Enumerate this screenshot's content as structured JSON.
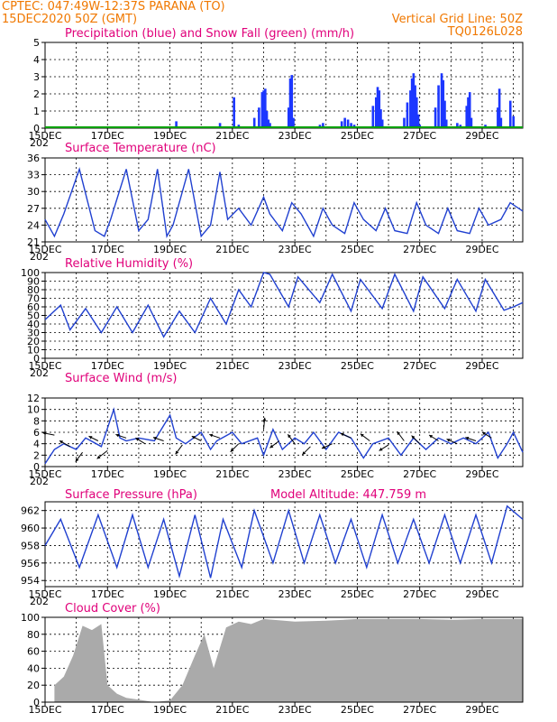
{
  "header": {
    "left_line1": "CPTEC:   047:49W-12:37S   PARANA (TO)",
    "left_line2": "15DEC2020 50Z (GMT)",
    "right_line1": "Vertical Grid Line: 50Z",
    "right_line2": "TQ0126L028"
  },
  "x_ticks": [
    "15DEC",
    "17DEC",
    "19DEC",
    "21DEC",
    "23DEC",
    "25DEC",
    "27DEC",
    "29DEC"
  ],
  "x_tick_cut": "202",
  "colors": {
    "precip": "#1c37ff",
    "snow": "#00a000",
    "line": "#2040d0",
    "cloud": "#aaaaaa",
    "header": "#f07800",
    "title": "#e0007a"
  },
  "chart_data": [
    {
      "type": "bar",
      "title": "Precipitation (blue) and Snow Fall (green) (mm/h)",
      "yticks": [
        "0",
        "1",
        "2",
        "3",
        "4",
        "5"
      ],
      "ylim": [
        0,
        5
      ],
      "xlim_days": [
        15,
        30.3
      ],
      "series": [
        {
          "name": "Precipitation",
          "x": [
            19.2,
            20.6,
            21.05,
            21.2,
            21.7,
            21.85,
            21.95,
            22.0,
            22.05,
            22.1,
            22.15,
            22.2,
            22.8,
            22.85,
            22.9,
            22.95,
            23.8,
            23.9,
            24.5,
            24.6,
            24.7,
            24.8,
            24.9,
            25.0,
            25.5,
            25.6,
            25.65,
            25.7,
            25.75,
            25.8,
            26.5,
            26.6,
            26.7,
            26.75,
            26.8,
            26.85,
            26.9,
            26.95,
            27.0,
            27.5,
            27.6,
            27.7,
            27.75,
            27.8,
            27.85,
            28.2,
            28.3,
            28.5,
            28.55,
            28.6,
            28.65,
            29.1,
            29.5,
            29.55,
            29.6,
            29.9,
            30.0
          ],
          "values": [
            0.4,
            0.3,
            1.8,
            0.2,
            0.6,
            1.2,
            2.1,
            2.2,
            2.3,
            1.0,
            0.5,
            0.3,
            1.2,
            2.9,
            3.1,
            0.6,
            0.2,
            0.3,
            0.4,
            0.6,
            0.5,
            0.3,
            0.2,
            0.1,
            1.3,
            1.8,
            2.4,
            2.2,
            1.1,
            0.5,
            0.6,
            1.5,
            2.2,
            2.9,
            3.2,
            2.5,
            1.8,
            0.8,
            0.2,
            1.2,
            2.5,
            3.2,
            2.8,
            1.6,
            0.5,
            0.3,
            0.2,
            1.3,
            1.8,
            2.1,
            0.6,
            0.2,
            1.2,
            2.3,
            0.6,
            1.6,
            0.7
          ]
        },
        {
          "name": "Snow Fall",
          "x": [
            15,
            30.3
          ],
          "values": [
            0,
            0
          ]
        }
      ]
    },
    {
      "type": "line",
      "title": "Surface Temperature (nC)",
      "yticks": [
        "21",
        "24",
        "27",
        "30",
        "33",
        "36"
      ],
      "ylim": [
        21,
        36
      ],
      "x": [
        15.0,
        15.3,
        15.6,
        16.1,
        16.6,
        16.9,
        17.1,
        17.6,
        18.0,
        18.3,
        18.6,
        18.9,
        19.1,
        19.6,
        20.0,
        20.3,
        20.6,
        20.85,
        21.2,
        21.6,
        22.0,
        22.2,
        22.6,
        22.9,
        23.2,
        23.6,
        23.9,
        24.2,
        24.6,
        24.9,
        25.2,
        25.6,
        25.9,
        26.2,
        26.6,
        26.9,
        27.2,
        27.6,
        27.9,
        28.2,
        28.6,
        28.9,
        29.2,
        29.6,
        29.9,
        30.3
      ],
      "y": [
        25,
        22,
        26,
        34,
        23,
        22,
        25,
        34,
        23,
        25,
        34,
        22,
        24,
        34,
        22,
        24,
        33.5,
        25,
        27,
        24,
        29,
        26,
        23,
        28,
        26,
        22,
        27,
        24,
        22.5,
        28,
        25,
        23,
        27,
        23,
        22.5,
        28,
        24,
        22.5,
        27,
        23,
        22.5,
        27,
        24,
        25,
        28,
        26.5
      ]
    },
    {
      "type": "line",
      "title": "Relative Humidity (%)",
      "yticks": [
        "0",
        "10",
        "20",
        "30",
        "40",
        "50",
        "60",
        "70",
        "80",
        "90",
        "100"
      ],
      "ylim": [
        0,
        100
      ],
      "x": [
        15.0,
        15.5,
        15.8,
        16.3,
        16.8,
        17.3,
        17.8,
        18.3,
        18.8,
        19.3,
        19.8,
        20.3,
        20.8,
        21.2,
        21.6,
        22.0,
        22.2,
        22.8,
        23.1,
        23.8,
        24.2,
        24.8,
        25.1,
        25.8,
        26.2,
        26.8,
        27.1,
        27.8,
        28.2,
        28.8,
        29.1,
        29.7,
        30.0,
        30.3
      ],
      "y": [
        45,
        62,
        33,
        58,
        30,
        60,
        30,
        62,
        25,
        55,
        30,
        70,
        40,
        80,
        60,
        100,
        98,
        60,
        95,
        65,
        98,
        55,
        92,
        58,
        98,
        55,
        95,
        58,
        92,
        55,
        92,
        56,
        60,
        65
      ]
    },
    {
      "type": "line",
      "title": "Surface Wind (m/s)",
      "yticks": [
        "0",
        "2",
        "4",
        "6",
        "8",
        "10",
        "12"
      ],
      "ylim": [
        0,
        12
      ],
      "x": [
        15.0,
        15.3,
        15.6,
        16.0,
        16.3,
        16.8,
        17.2,
        17.4,
        17.6,
        18.0,
        18.5,
        19.0,
        19.2,
        19.5,
        20.0,
        20.3,
        20.5,
        21.0,
        21.3,
        21.8,
        22.0,
        22.3,
        22.6,
        23.0,
        23.3,
        23.6,
        24.0,
        24.4,
        24.8,
        25.2,
        25.5,
        26.0,
        26.4,
        26.8,
        27.2,
        27.6,
        28.0,
        28.4,
        28.8,
        29.2,
        29.5,
        29.8,
        30.0,
        30.3
      ],
      "y": [
        0.5,
        3.0,
        4.0,
        3.0,
        5.0,
        3.5,
        10.0,
        5.0,
        4.5,
        5.0,
        4.5,
        9.0,
        5.0,
        4.0,
        6.0,
        3.0,
        4.5,
        6.0,
        4.0,
        5.0,
        2.0,
        6.5,
        3.0,
        5.0,
        4.0,
        6.0,
        3.0,
        6.0,
        5.0,
        1.5,
        4.0,
        5.0,
        2.0,
        5.0,
        3.0,
        5.0,
        4.0,
        5.0,
        4.0,
        6.0,
        1.5,
        4.0,
        6.0,
        2.5
      ],
      "arrows": [
        {
          "x": 15.3,
          "y": 5.5,
          "dx": -1,
          "dy": 0.2
        },
        {
          "x": 15.8,
          "y": 3.5,
          "dx": -0.9,
          "dy": 0.5
        },
        {
          "x": 16.2,
          "y": 2.5,
          "dx": -0.6,
          "dy": -0.8
        },
        {
          "x": 16.7,
          "y": 4.5,
          "dx": -0.8,
          "dy": 0.4
        },
        {
          "x": 17.0,
          "y": 2.8,
          "dx": -0.9,
          "dy": -0.7
        },
        {
          "x": 17.6,
          "y": 5.0,
          "dx": -0.9,
          "dy": 0.3
        },
        {
          "x": 18.2,
          "y": 4.0,
          "dx": -0.8,
          "dy": 0.5
        },
        {
          "x": 18.8,
          "y": 4.5,
          "dx": -0.9,
          "dy": 0.3
        },
        {
          "x": 19.4,
          "y": 3.8,
          "dx": -0.6,
          "dy": -0.8
        },
        {
          "x": 20.0,
          "y": 4.5,
          "dx": -0.8,
          "dy": 0.4
        },
        {
          "x": 20.6,
          "y": 5.0,
          "dx": -0.9,
          "dy": 0.3
        },
        {
          "x": 21.2,
          "y": 4.0,
          "dx": -0.7,
          "dy": -0.7
        },
        {
          "x": 22.0,
          "y": 6.5,
          "dx": 0.1,
          "dy": 1.0
        },
        {
          "x": 22.5,
          "y": 4.5,
          "dx": -0.8,
          "dy": -0.6
        },
        {
          "x": 23.0,
          "y": 4.0,
          "dx": -0.6,
          "dy": 0.8
        },
        {
          "x": 23.5,
          "y": 3.5,
          "dx": -0.7,
          "dy": -0.7
        },
        {
          "x": 24.2,
          "y": 4.0,
          "dx": -0.9,
          "dy": -0.4
        },
        {
          "x": 24.8,
          "y": 5.0,
          "dx": -0.9,
          "dy": 0.4
        },
        {
          "x": 25.4,
          "y": 4.5,
          "dx": -0.8,
          "dy": 0.6
        },
        {
          "x": 26.0,
          "y": 3.8,
          "dx": -0.8,
          "dy": -0.5
        },
        {
          "x": 26.5,
          "y": 4.5,
          "dx": -0.6,
          "dy": 0.8
        },
        {
          "x": 27.0,
          "y": 4.0,
          "dx": -0.7,
          "dy": 0.7
        },
        {
          "x": 27.6,
          "y": 4.5,
          "dx": -0.8,
          "dy": 0.5
        },
        {
          "x": 28.2,
          "y": 4.0,
          "dx": -0.9,
          "dy": 0.4
        },
        {
          "x": 28.8,
          "y": 4.5,
          "dx": -0.9,
          "dy": 0.3
        },
        {
          "x": 29.3,
          "y": 5.0,
          "dx": -0.8,
          "dy": 0.5
        }
      ]
    },
    {
      "type": "line",
      "title": "Surface Pressure (hPa)",
      "annotation": "Model Altitude: 447.759 m",
      "yticks": [
        "954",
        "956",
        "958",
        "960",
        "962"
      ],
      "ylim": [
        953.3,
        963
      ],
      "x": [
        15.0,
        15.5,
        16.1,
        16.7,
        17.3,
        17.8,
        18.3,
        18.8,
        19.3,
        19.8,
        20.3,
        20.7,
        21.3,
        21.7,
        22.3,
        22.8,
        23.3,
        23.8,
        24.3,
        24.8,
        25.3,
        25.8,
        26.3,
        26.8,
        27.3,
        27.8,
        28.3,
        28.8,
        29.3,
        29.8,
        30.3
      ],
      "y": [
        958,
        961,
        955.5,
        961.5,
        955.5,
        961.5,
        955.5,
        961,
        954.5,
        961.5,
        954.3,
        961,
        955.5,
        962,
        956,
        962,
        956,
        961.5,
        956,
        961,
        955.5,
        961.5,
        956,
        961,
        956,
        961.5,
        956,
        961.5,
        956,
        962.5,
        961
      ]
    },
    {
      "type": "area",
      "title": "Cloud Cover (%)",
      "yticks": [
        "0",
        "20",
        "40",
        "60",
        "80",
        "100"
      ],
      "ylim": [
        0,
        100
      ],
      "x": [
        15.3,
        15.6,
        15.9,
        16.2,
        16.5,
        16.8,
        17.0,
        17.3,
        17.6,
        18.0,
        18.5,
        19.0,
        19.4,
        19.8,
        20.1,
        20.4,
        20.8,
        21.2,
        21.6,
        22.0,
        23.0,
        24.0,
        25.0,
        26.0,
        27.0,
        28.0,
        29.0,
        30.0,
        30.3
      ],
      "y": [
        20,
        30,
        55,
        90,
        85,
        92,
        20,
        10,
        5,
        3,
        0,
        2,
        20,
        55,
        80,
        40,
        88,
        95,
        92,
        98,
        95,
        96,
        98,
        98,
        98,
        97,
        98,
        98,
        98
      ]
    }
  ]
}
